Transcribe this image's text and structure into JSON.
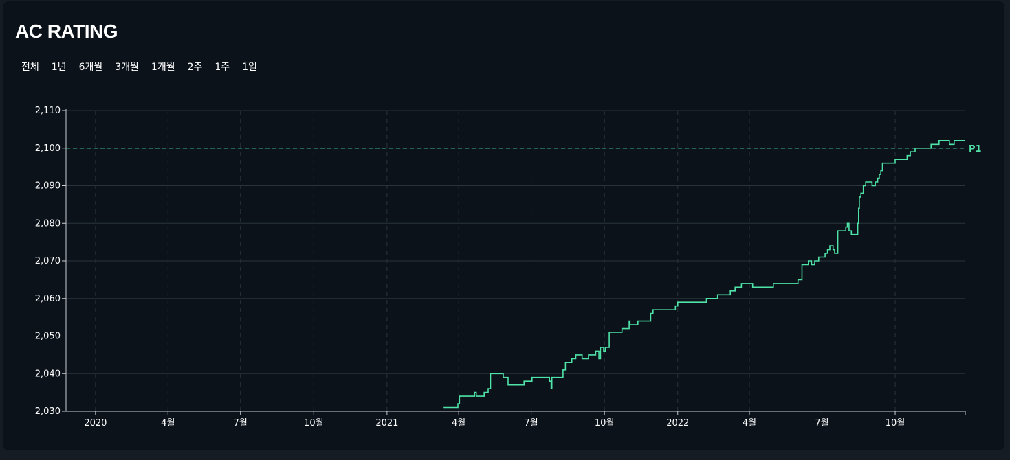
{
  "title": "AC RATING",
  "tabs": [
    "전체",
    "1년",
    "6개월",
    "3개월",
    "1개월",
    "2주",
    "1주",
    "1일"
  ],
  "colors": {
    "line": "#4fe3a8",
    "reference": "#4fe3a8",
    "grid": "#2a323b",
    "background": "#0b121a"
  },
  "chart_data": {
    "type": "line",
    "title": "",
    "xlabel": "",
    "ylabel": "",
    "ylim": [
      2030,
      2110
    ],
    "yticks": [
      2030,
      2040,
      2050,
      2060,
      2070,
      2080,
      2090,
      2100,
      2110
    ],
    "ytick_labels": [
      "2,030",
      "2,040",
      "2,050",
      "2,060",
      "2,070",
      "2,080",
      "2,090",
      "2,100",
      "2,110"
    ],
    "xlim": [
      "2019-11-25",
      "2022-12-28"
    ],
    "xticks": [
      "2020-01-01",
      "2020-04-01",
      "2020-07-01",
      "2020-10-01",
      "2021-01-01",
      "2021-04-01",
      "2021-07-01",
      "2021-10-01",
      "2022-01-01",
      "2022-04-01",
      "2022-07-01",
      "2022-10-01"
    ],
    "xtick_labels": [
      "2020",
      "4월",
      "7월",
      "10월",
      "2021",
      "4월",
      "7월",
      "10월",
      "2022",
      "4월",
      "7월",
      "10월"
    ],
    "grid": true,
    "reference_lines": [
      {
        "y": 2100,
        "label": "P1",
        "style": "dashed"
      }
    ],
    "series": [
      {
        "step": true,
        "points": [
          [
            "2021-03-13",
            2031
          ],
          [
            "2021-03-31",
            2032
          ],
          [
            "2021-04-02",
            2034
          ],
          [
            "2021-04-21",
            2035
          ],
          [
            "2021-04-23",
            2034
          ],
          [
            "2021-05-03",
            2035
          ],
          [
            "2021-05-08",
            2036
          ],
          [
            "2021-05-11",
            2040
          ],
          [
            "2021-05-27",
            2039
          ],
          [
            "2021-06-02",
            2037
          ],
          [
            "2021-06-22",
            2038
          ],
          [
            "2021-07-02",
            2039
          ],
          [
            "2021-07-24",
            2038
          ],
          [
            "2021-07-26",
            2036
          ],
          [
            "2021-07-27",
            2039
          ],
          [
            "2021-08-10",
            2041
          ],
          [
            "2021-08-13",
            2043
          ],
          [
            "2021-08-21",
            2044
          ],
          [
            "2021-08-26",
            2045
          ],
          [
            "2021-09-03",
            2044
          ],
          [
            "2021-09-11",
            2045
          ],
          [
            "2021-09-20",
            2046
          ],
          [
            "2021-09-24",
            2044
          ],
          [
            "2021-09-26",
            2047
          ],
          [
            "2021-09-30",
            2046
          ],
          [
            "2021-10-02",
            2047
          ],
          [
            "2021-10-07",
            2051
          ],
          [
            "2021-10-23",
            2052
          ],
          [
            "2021-11-01",
            2054
          ],
          [
            "2021-11-02",
            2053
          ],
          [
            "2021-11-12",
            2054
          ],
          [
            "2021-11-28",
            2056
          ],
          [
            "2021-12-01",
            2057
          ],
          [
            "2021-12-29",
            2058
          ],
          [
            "2022-01-01",
            2059
          ],
          [
            "2022-02-06",
            2060
          ],
          [
            "2022-02-20",
            2061
          ],
          [
            "2022-03-08",
            2062
          ],
          [
            "2022-03-14",
            2063
          ],
          [
            "2022-03-22",
            2064
          ],
          [
            "2022-04-05",
            2063
          ],
          [
            "2022-05-01",
            2064
          ],
          [
            "2022-06-01",
            2065
          ],
          [
            "2022-06-06",
            2069
          ],
          [
            "2022-06-14",
            2070
          ],
          [
            "2022-06-18",
            2069
          ],
          [
            "2022-06-22",
            2070
          ],
          [
            "2022-06-27",
            2071
          ],
          [
            "2022-07-05",
            2072
          ],
          [
            "2022-07-08",
            2073
          ],
          [
            "2022-07-11",
            2074
          ],
          [
            "2022-07-15",
            2073
          ],
          [
            "2022-07-17",
            2072
          ],
          [
            "2022-07-21",
            2078
          ],
          [
            "2022-07-31",
            2079
          ],
          [
            "2022-08-02",
            2080
          ],
          [
            "2022-08-04",
            2078
          ],
          [
            "2022-08-07",
            2077
          ],
          [
            "2022-08-15",
            2080
          ],
          [
            "2022-08-16",
            2084
          ],
          [
            "2022-08-17",
            2087
          ],
          [
            "2022-08-19",
            2088
          ],
          [
            "2022-08-22",
            2090
          ],
          [
            "2022-08-25",
            2091
          ],
          [
            "2022-09-02",
            2090
          ],
          [
            "2022-09-06",
            2091
          ],
          [
            "2022-09-09",
            2092
          ],
          [
            "2022-09-11",
            2093
          ],
          [
            "2022-09-13",
            2094
          ],
          [
            "2022-09-15",
            2096
          ],
          [
            "2022-10-01",
            2097
          ],
          [
            "2022-10-16",
            2098
          ],
          [
            "2022-10-20",
            2099
          ],
          [
            "2022-10-26",
            2100
          ],
          [
            "2022-11-15",
            2101
          ],
          [
            "2022-11-25",
            2102
          ],
          [
            "2022-12-08",
            2101
          ],
          [
            "2022-12-14",
            2102
          ],
          [
            "2022-12-28",
            2102
          ]
        ]
      }
    ]
  }
}
